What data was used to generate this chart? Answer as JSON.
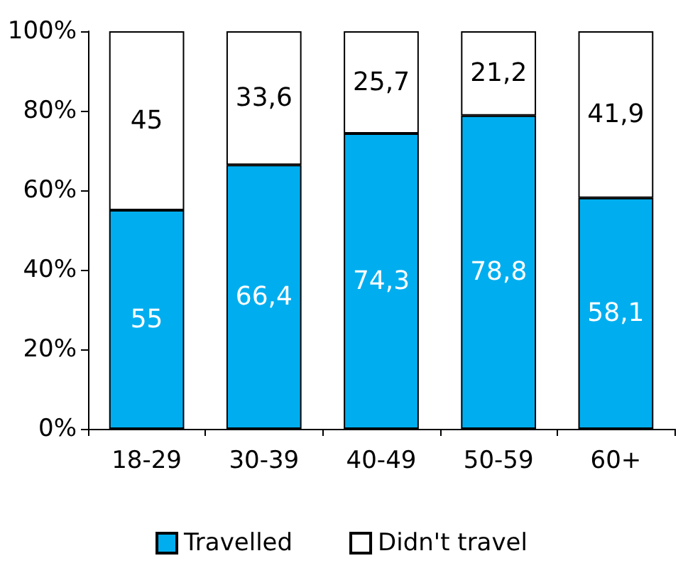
{
  "chart_data": {
    "type": "bar",
    "stacked": true,
    "categories": [
      "18-29",
      "30-39",
      "40-49",
      "50-59",
      "60+"
    ],
    "series": [
      {
        "name": "Travelled",
        "color": "#00aeef",
        "values": [
          55,
          66.4,
          74.3,
          78.8,
          58.1
        ],
        "value_labels": [
          "55",
          "66,4",
          "74,3",
          "78,8",
          "58,1"
        ]
      },
      {
        "name": "Didn't travel",
        "color": "#ffffff",
        "values": [
          45,
          33.6,
          25.7,
          21.2,
          41.9
        ],
        "value_labels": [
          "45",
          "33,6",
          "25,7",
          "21,2",
          "41,9"
        ]
      }
    ],
    "ylim": [
      0,
      100
    ],
    "yticks": [
      {
        "value": 0,
        "label": "0%"
      },
      {
        "value": 20,
        "label": "20%"
      },
      {
        "value": 40,
        "label": "40%"
      },
      {
        "value": 60,
        "label": "60%"
      },
      {
        "value": 80,
        "label": "80%"
      },
      {
        "value": 100,
        "label": "100%"
      }
    ],
    "grid": false,
    "legend": "bottom"
  }
}
